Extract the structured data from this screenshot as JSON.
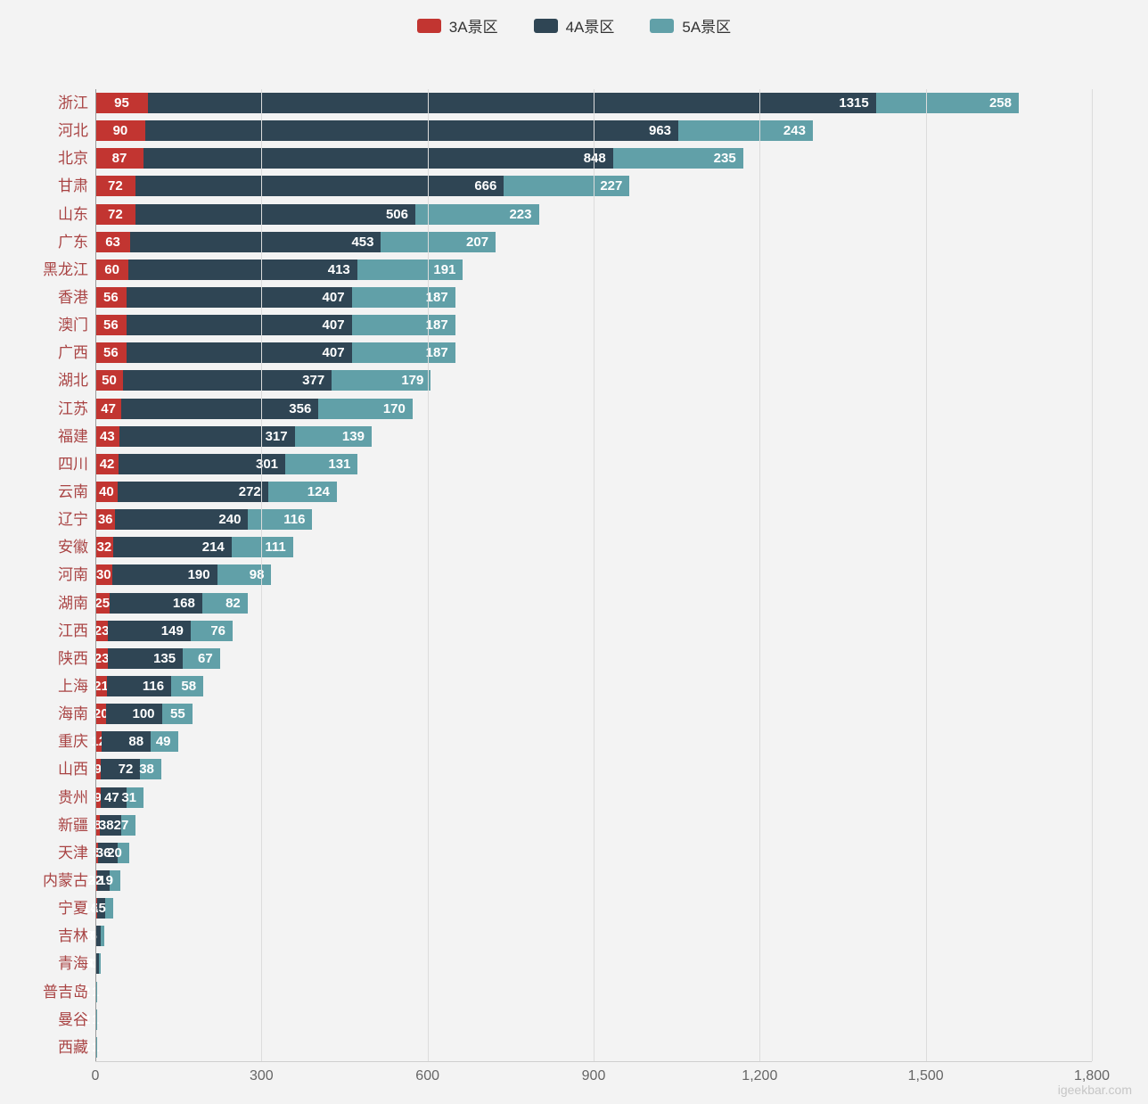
{
  "legend": [
    {
      "label": "3A景区",
      "color": "#c23531"
    },
    {
      "label": "4A景区",
      "color": "#2f4554"
    },
    {
      "label": "5A景区",
      "color": "#61a0a8"
    }
  ],
  "watermark": "igeekbar.com",
  "colors": {
    "background": "#f3f3f3",
    "gridline": "#dcdcdc",
    "axis_line": "#9a9a9a",
    "category_label": "#a94444",
    "tick_label": "#666666",
    "value_label": "#ffffff"
  },
  "chart_data": {
    "type": "bar",
    "orientation": "horizontal",
    "stacked": true,
    "grid": true,
    "legend_position": "top",
    "xlim": [
      0,
      1800
    ],
    "x_ticks": [
      "0",
      "300",
      "600",
      "900",
      "1,200",
      "1,500",
      "1,800"
    ],
    "x_tick_values": [
      0,
      300,
      600,
      900,
      1200,
      1500,
      1800
    ],
    "categories": [
      "浙江",
      "河北",
      "北京",
      "甘肃",
      "山东",
      "广东",
      "黑龙江",
      "香港",
      "澳门",
      "广西",
      "湖北",
      "江苏",
      "福建",
      "四川",
      "云南",
      "辽宁",
      "安徽",
      "河南",
      "湖南",
      "江西",
      "陕西",
      "上海",
      "海南",
      "重庆",
      "山西",
      "贵州",
      "新疆",
      "天津",
      "内蒙古",
      "宁夏",
      "吉林",
      "青海",
      "普吉岛",
      "曼谷",
      "西藏"
    ],
    "series": [
      {
        "name": "3A景区",
        "color": "#c23531",
        "values": [
          95,
          90,
          87,
          72,
          72,
          63,
          60,
          56,
          56,
          56,
          50,
          47,
          43,
          42,
          40,
          36,
          32,
          30,
          25,
          23,
          23,
          21,
          20,
          12,
          9,
          9,
          8,
          5,
          4,
          3,
          2,
          1,
          1,
          1,
          1
        ]
      },
      {
        "name": "4A景区",
        "color": "#2f4554",
        "values": [
          1315,
          963,
          848,
          666,
          506,
          453,
          413,
          407,
          407,
          407,
          377,
          356,
          317,
          301,
          272,
          240,
          214,
          190,
          168,
          149,
          135,
          116,
          100,
          88,
          72,
          47,
          38,
          36,
          22,
          14,
          8,
          5,
          1,
          1,
          1
        ]
      },
      {
        "name": "5A景区",
        "color": "#61a0a8",
        "values": [
          258,
          243,
          235,
          227,
          223,
          207,
          191,
          187,
          187,
          187,
          179,
          170,
          139,
          131,
          124,
          116,
          111,
          98,
          82,
          76,
          67,
          58,
          55,
          49,
          38,
          31,
          27,
          20,
          19,
          15,
          6,
          4,
          2,
          2,
          2
        ]
      }
    ]
  }
}
